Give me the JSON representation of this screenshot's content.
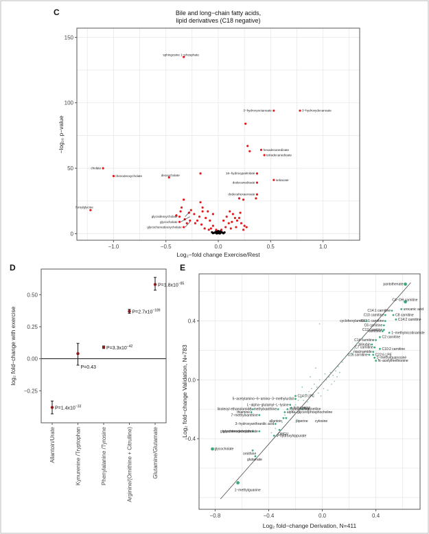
{
  "panels": [
    "C",
    "D",
    "E"
  ],
  "chart_data": [
    {
      "panel": "C",
      "type": "scatter",
      "title": "Bile and long−chain fatty acids,\nlipid derivatives (C18 negative)",
      "xlabel": "Log₂−fold change Exercise/Rest",
      "ylabel": "−log₁₀ p−value",
      "xlim": [
        -1.35,
        1.35
      ],
      "ylim": [
        -5,
        157
      ],
      "xticks": [
        -1.0,
        -0.5,
        0.0,
        0.5,
        1.0
      ],
      "yticks": [
        0,
        50,
        100,
        150
      ],
      "xtick_labels": [
        "−1.0",
        "−0.5",
        "0.0",
        "0.5",
        "1.0"
      ],
      "ytick_labels": [
        "0",
        "50",
        "100",
        "150"
      ],
      "grid": true,
      "colors": {
        "significant": "#e41a1c",
        "nonsignificant": "#000000"
      },
      "labeled_points": [
        {
          "x": -0.33,
          "y": 135,
          "label": "sphingosine 1−phosphate"
        },
        {
          "x": 0.53,
          "y": 94,
          "label": "3−hydroxyoctanoate"
        },
        {
          "x": 0.78,
          "y": 94,
          "label": "3−hydroxydecanoate"
        },
        {
          "x": 0.41,
          "y": 64,
          "label": "hexadecanedioate"
        },
        {
          "x": 0.44,
          "y": 60,
          "label": "tetradecanedioate"
        },
        {
          "x": -1.1,
          "y": 50,
          "label": "cholate"
        },
        {
          "x": -1.0,
          "y": 44,
          "label": "chenodeoxycholate"
        },
        {
          "x": -0.47,
          "y": 43,
          "label": "deoxycholate"
        },
        {
          "x": 0.37,
          "y": 46,
          "label": "16−hydroxypalmitate"
        },
        {
          "x": 0.53,
          "y": 41,
          "label": "sebacate"
        },
        {
          "x": 0.37,
          "y": 39,
          "label": "dodecanedioate"
        },
        {
          "x": 0.37,
          "y": 30,
          "label": "dodecahexaenoate"
        },
        {
          "x": -1.22,
          "y": 18,
          "label": "furoylglycine"
        },
        {
          "x": -0.37,
          "y": 13,
          "label": "glycodeoxycholate"
        },
        {
          "x": -0.37,
          "y": 9,
          "label": "glycocholate"
        },
        {
          "x": -0.33,
          "y": 5,
          "label": "glycochenodeoxycholate"
        }
      ],
      "unlabeled_significant": [
        [
          0.26,
          84
        ],
        [
          0.28,
          67
        ],
        [
          0.3,
          63
        ],
        [
          -0.17,
          46
        ],
        [
          0.2,
          27
        ],
        [
          0.24,
          26
        ],
        [
          0.36,
          27
        ],
        [
          -0.33,
          26
        ],
        [
          -0.35,
          20
        ],
        [
          -0.17,
          24
        ],
        [
          -0.15,
          20
        ],
        [
          -0.4,
          14
        ],
        [
          -0.36,
          17
        ],
        [
          -0.28,
          16
        ],
        [
          -0.23,
          15
        ],
        [
          -0.18,
          13
        ],
        [
          -0.12,
          12
        ],
        [
          -0.08,
          10
        ],
        [
          -0.05,
          6
        ],
        [
          -0.22,
          8
        ],
        [
          -0.27,
          10
        ],
        [
          -0.15,
          17
        ],
        [
          -0.1,
          17
        ],
        [
          -0.26,
          18
        ],
        [
          -0.32,
          11
        ],
        [
          -0.3,
          8
        ],
        [
          -0.2,
          10
        ],
        [
          -0.16,
          7
        ],
        [
          -0.13,
          4
        ],
        [
          -0.07,
          4
        ],
        [
          -0.02,
          3
        ],
        [
          0.03,
          3
        ],
        [
          0.07,
          5
        ],
        [
          0.1,
          8
        ],
        [
          0.13,
          9
        ],
        [
          0.16,
          12
        ],
        [
          0.18,
          10
        ],
        [
          0.2,
          12
        ],
        [
          0.22,
          8
        ],
        [
          0.25,
          6
        ],
        [
          0.27,
          5
        ],
        [
          0.14,
          15
        ],
        [
          0.11,
          17
        ],
        [
          0.21,
          16
        ],
        [
          0.05,
          10
        ],
        [
          0.08,
          13
        ],
        [
          -0.05,
          15
        ],
        [
          -0.09,
          3
        ],
        [
          0.12,
          4
        ],
        [
          0.17,
          5
        ],
        [
          0.24,
          3
        ]
      ],
      "nonsignificant": [
        [
          -0.03,
          1
        ],
        [
          -0.02,
          0.5
        ],
        [
          -0.01,
          1.5
        ],
        [
          0.0,
          0.4
        ],
        [
          0.01,
          1.2
        ],
        [
          0.02,
          0.6
        ],
        [
          0.03,
          1.4
        ],
        [
          0.04,
          0.8
        ],
        [
          -0.04,
          0.7
        ],
        [
          0.05,
          0.3
        ],
        [
          -0.05,
          0.4
        ],
        [
          0.06,
          1.0
        ],
        [
          -0.06,
          1.1
        ],
        [
          0.0,
          2.0
        ],
        [
          -0.02,
          2.2
        ],
        [
          0.02,
          1.8
        ],
        [
          0.015,
          0.2
        ],
        [
          -0.015,
          0.2
        ]
      ]
    },
    {
      "panel": "D",
      "type": "errorbar",
      "ylabel": "log₂ fold−change with exercise",
      "ylim": [
        -0.5,
        0.7
      ],
      "yticks": [
        -0.25,
        0.0,
        0.25,
        0.5
      ],
      "ytick_labels": [
        "−0.25",
        "0.00",
        "0.25",
        "0.50"
      ],
      "categories": [
        "Allantoin/Urate",
        "Kynurenine /Tryptophan",
        "Phenylalanine /Tyrosine",
        "Arginine/(Ornithine + Citrulline)",
        "Glutamine/Glutamate"
      ],
      "values": [
        -0.38,
        0.04,
        0.09,
        0.37,
        0.58
      ],
      "ci_low": [
        -0.43,
        -0.05,
        0.08,
        0.355,
        0.535
      ],
      "ci_high": [
        -0.33,
        0.12,
        0.1,
        0.385,
        0.635
      ],
      "p_labels": [
        {
          "base": "P=1.4x10",
          "exp": "−33"
        },
        {
          "base": "P=0.43",
          "exp": ""
        },
        {
          "base": "P=3.3x10",
          "exp": "−42"
        },
        {
          "base": "P=2.7x10",
          "exp": "−189"
        },
        {
          "base": "P=1.8x10",
          "exp": "−85"
        }
      ],
      "colors": {
        "point": "#8b1a1a",
        "errorbar": "#111111"
      }
    },
    {
      "panel": "E",
      "type": "scatter",
      "xlabel": "Log₂ fold−change Derivation, N=411",
      "ylabel": "Log₂ fold−change Validation, N=783",
      "xlim": [
        -0.92,
        0.73
      ],
      "ylim": [
        -0.88,
        0.72
      ],
      "xticks": [
        -0.8,
        -0.4,
        0.0,
        0.4
      ],
      "yticks": [
        -0.4,
        0.0,
        0.4
      ],
      "xtick_labels": [
        "−0.8",
        "−0.4",
        "0.0",
        "0.4"
      ],
      "ytick_labels": [
        "−0.4",
        "0.0",
        "0.4"
      ],
      "grid": true,
      "colors": {
        "labeled": "#3daa7a",
        "background": "#88c9a4",
        "line": "#555555"
      },
      "fit_line": [
        [
          -0.76,
          -0.81
        ],
        [
          0.66,
          0.66
        ]
      ],
      "labeled_points": [
        {
          "x": 0.62,
          "y": 0.65,
          "label": "pantothenate",
          "big": true
        },
        {
          "x": 0.62,
          "y": 0.53,
          "label": "C4−OH carnitine",
          "big": true
        },
        {
          "x": 0.59,
          "y": 0.48,
          "label": "urocanic acid"
        },
        {
          "x": 0.52,
          "y": 0.47,
          "label": "C14:1 carnitine"
        },
        {
          "x": 0.53,
          "y": 0.44,
          "label": "C8 carnitine"
        },
        {
          "x": 0.47,
          "y": 0.44,
          "label": "C10 carnitine"
        },
        {
          "x": 0.47,
          "y": 0.4,
          "label": "C12:1 carnitine"
        },
        {
          "x": 0.55,
          "y": 0.41,
          "label": "C14:2 carnitine"
        },
        {
          "x": 0.33,
          "y": 0.4,
          "label": "cyclohexylamine"
        },
        {
          "x": 0.46,
          "y": 0.37,
          "label": "C6 carnitine"
        },
        {
          "x": 0.46,
          "y": 0.34,
          "label": "C12 carnitine"
        },
        {
          "x": 0.45,
          "y": 0.33,
          "label": "xanthine"
        },
        {
          "x": 0.5,
          "y": 0.32,
          "label": "1−methylnicotinamide"
        },
        {
          "x": 0.43,
          "y": 0.29,
          "label": "C2 carnitine"
        },
        {
          "x": 0.4,
          "y": 0.27,
          "label": "C14 carnitine"
        },
        {
          "x": 0.37,
          "y": 0.24,
          "label": "bilirubin"
        },
        {
          "x": 0.39,
          "y": 0.22,
          "label": "C7 carnitine"
        },
        {
          "x": 0.43,
          "y": 0.21,
          "label": "C10:2 carnitine"
        },
        {
          "x": 0.38,
          "y": 0.19,
          "label": "niacinamide"
        },
        {
          "x": 0.35,
          "y": 0.17,
          "label": "C16 carnitine"
        },
        {
          "x": 0.38,
          "y": 0.17,
          "label": "C22:6 LPE"
        },
        {
          "x": 0.39,
          "y": 0.15,
          "label": "1−methylguanosine"
        },
        {
          "x": 0.4,
          "y": 0.13,
          "label": "N−acetylmethionine"
        },
        {
          "x": -0.2,
          "y": -0.11,
          "label": "C14:0 LPC"
        },
        {
          "x": -0.2,
          "y": -0.13,
          "label": "5−acetylamino−6−amino−3−methyluracil"
        },
        {
          "x": -0.24,
          "y": -0.17,
          "label": "L−alpha−glutamyl−L−lysine"
        },
        {
          "x": -0.23,
          "y": -0.19,
          "label": "kynurenine"
        },
        {
          "x": -0.33,
          "y": -0.2,
          "label": "1−methylxanthine"
        },
        {
          "x": -0.52,
          "y": -0.2,
          "label": "linoleoyl ethanolamide"
        },
        {
          "x": -0.15,
          "y": -0.2,
          "label": "trigonelline"
        },
        {
          "x": -0.26,
          "y": -0.2,
          "label": "hypoxanthine"
        },
        {
          "x": -0.53,
          "y": -0.22,
          "label": "thiamine"
        },
        {
          "x": -0.28,
          "y": -0.22,
          "label": "alpha−glycerophosphocholine"
        },
        {
          "x": -0.47,
          "y": -0.24,
          "label": "7−methylxanthine"
        },
        {
          "x": -0.29,
          "y": -0.26,
          "label": "allantoin"
        },
        {
          "x": -0.27,
          "y": -0.26,
          "label": "piperine"
        },
        {
          "x": -0.27,
          "y": -0.26,
          "label": "cytosine"
        },
        {
          "x": -0.35,
          "y": -0.3,
          "label": "3−hydroxyanthranilic acid"
        },
        {
          "x": -0.52,
          "y": -0.35,
          "label": "glycodeoxycholate"
        },
        {
          "x": -0.47,
          "y": -0.35,
          "label": "glycochenodeoxycholate"
        },
        {
          "x": -0.32,
          "y": -0.34,
          "label": "DMGV"
        },
        {
          "x": -0.36,
          "y": -0.38,
          "label": "4−hydroxyhippurate"
        },
        {
          "x": -0.82,
          "y": -0.47,
          "label": "glycocholate",
          "big": true
        },
        {
          "x": -0.52,
          "y": -0.48,
          "label": "ornithine"
        },
        {
          "x": -0.5,
          "y": -0.52,
          "label": "glutamate"
        },
        {
          "x": -0.63,
          "y": -0.7,
          "label": "1−methylguanine",
          "big": true
        }
      ],
      "background_points": [
        [
          -0.2,
          -0.17
        ],
        [
          -0.16,
          -0.12
        ],
        [
          -0.12,
          -0.1
        ],
        [
          -0.1,
          -0.08
        ],
        [
          -0.08,
          -0.06
        ],
        [
          -0.06,
          -0.03
        ],
        [
          -0.04,
          -0.05
        ],
        [
          -0.02,
          0.0
        ],
        [
          0.0,
          -0.02
        ],
        [
          0.02,
          0.04
        ],
        [
          0.03,
          0.0
        ],
        [
          0.05,
          0.02
        ],
        [
          0.06,
          0.05
        ],
        [
          0.08,
          0.03
        ],
        [
          0.1,
          0.06
        ],
        [
          -0.14,
          -0.14
        ],
        [
          -0.18,
          -0.14
        ],
        [
          -0.11,
          -0.15
        ],
        [
          -0.07,
          -0.11
        ],
        [
          -0.03,
          -0.09
        ],
        [
          0.01,
          -0.06
        ],
        [
          -0.17,
          -0.22
        ],
        [
          -0.13,
          -0.19
        ],
        [
          -0.22,
          -0.22
        ],
        [
          -0.25,
          -0.28
        ],
        [
          -0.3,
          -0.29
        ],
        [
          -0.19,
          -0.27
        ],
        [
          -0.28,
          -0.24
        ],
        [
          -0.05,
          0.08
        ],
        [
          -0.02,
          0.38
        ],
        [
          0.12,
          0.09
        ],
        [
          0.15,
          0.12
        ],
        [
          0.17,
          0.15
        ],
        [
          0.2,
          0.17
        ],
        [
          0.22,
          0.18
        ],
        [
          0.24,
          0.21
        ],
        [
          0.26,
          0.25
        ],
        [
          0.28,
          0.27
        ],
        [
          0.3,
          0.28
        ],
        [
          0.04,
          -0.07
        ],
        [
          -0.09,
          0.02
        ],
        [
          0.07,
          -0.03
        ],
        [
          -0.35,
          -0.33
        ],
        [
          -0.38,
          -0.36
        ],
        [
          -0.24,
          -0.12
        ],
        [
          -0.15,
          -0.05
        ],
        [
          0.09,
          -0.01
        ],
        [
          0.11,
          0.02
        ],
        [
          0.13,
          0.05
        ],
        [
          -0.01,
          -0.11
        ]
      ]
    }
  ]
}
